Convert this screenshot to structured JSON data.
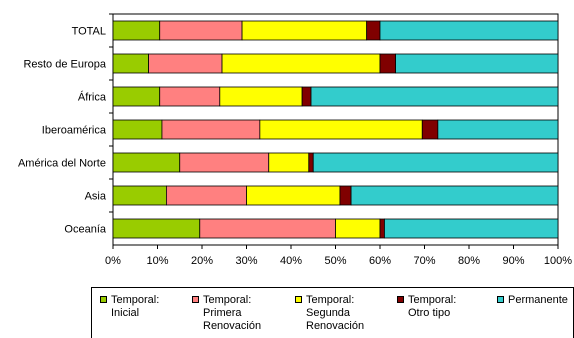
{
  "chart_data": {
    "type": "bar",
    "orientation": "horizontal",
    "stacked": true,
    "percent": true,
    "categories": [
      "TOTAL",
      "Resto de Europa",
      "África",
      "Iberoamérica",
      "América del Norte",
      "Asia",
      "Oceanía"
    ],
    "series": [
      {
        "name": "Temporal:\nInicial",
        "color": "#99cc00",
        "values": [
          10.5,
          8,
          10.5,
          11,
          15,
          12,
          19.5
        ]
      },
      {
        "name": "Temporal:\nPrimera\nRenovación",
        "color": "#ff8080",
        "values": [
          18.5,
          16.5,
          13.5,
          22,
          20,
          18,
          30.5
        ]
      },
      {
        "name": "Temporal:\nSegunda\nRenovación",
        "color": "#ffff00",
        "values": [
          28,
          35.5,
          18.5,
          36.5,
          9,
          21,
          10
        ]
      },
      {
        "name": "Temporal:\nOtro tipo",
        "color": "#800000",
        "values": [
          3,
          3.5,
          2,
          3.5,
          1,
          2.5,
          1
        ]
      },
      {
        "name": "Permanente",
        "color": "#33cccc",
        "values": [
          40,
          36.5,
          55.5,
          27,
          55,
          46.5,
          39
        ]
      }
    ],
    "x_ticks": [
      "0%",
      "10%",
      "20%",
      "30%",
      "40%",
      "50%",
      "60%",
      "70%",
      "80%",
      "90%",
      "100%"
    ],
    "xlim": [
      0,
      100
    ],
    "grid": false,
    "legend_position": "bottom",
    "title": "",
    "xlabel": "",
    "ylabel": ""
  }
}
